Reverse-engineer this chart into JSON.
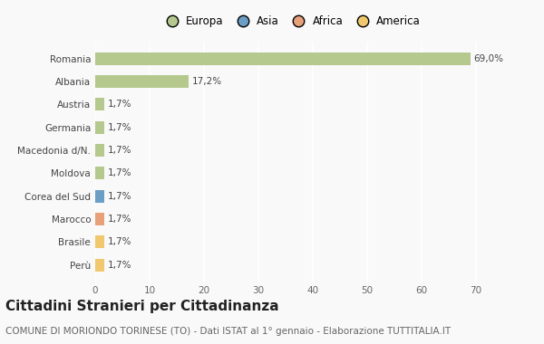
{
  "categories": [
    "Romania",
    "Albania",
    "Austria",
    "Germania",
    "Macedonia d/N.",
    "Moldova",
    "Corea del Sud",
    "Marocco",
    "Brasile",
    "Perù"
  ],
  "values": [
    69.0,
    17.2,
    1.7,
    1.7,
    1.7,
    1.7,
    1.7,
    1.7,
    1.7,
    1.7
  ],
  "labels": [
    "69,0%",
    "17,2%",
    "1,7%",
    "1,7%",
    "1,7%",
    "1,7%",
    "1,7%",
    "1,7%",
    "1,7%",
    "1,7%"
  ],
  "colors": [
    "#b5c98e",
    "#b5c98e",
    "#b5c98e",
    "#b5c98e",
    "#b5c98e",
    "#b5c98e",
    "#6b9ec4",
    "#e8a07a",
    "#f0c96e",
    "#f0c96e"
  ],
  "legend_labels": [
    "Europa",
    "Asia",
    "Africa",
    "America"
  ],
  "legend_colors": [
    "#b5c98e",
    "#6b9ec4",
    "#e8a07a",
    "#f0c96e"
  ],
  "title": "Cittadini Stranieri per Cittadinanza",
  "subtitle": "COMUNE DI MORIONDO TORINESE (TO) - Dati ISTAT al 1° gennaio - Elaborazione TUTTITALIA.IT",
  "xlim": [
    0,
    72
  ],
  "xticks": [
    0,
    10,
    20,
    30,
    40,
    50,
    60,
    70
  ],
  "background_color": "#f9f9f9",
  "grid_color": "#ffffff",
  "bar_height": 0.55,
  "title_fontsize": 11,
  "subtitle_fontsize": 7.5,
  "label_fontsize": 7.5,
  "tick_fontsize": 7.5,
  "legend_fontsize": 8.5
}
